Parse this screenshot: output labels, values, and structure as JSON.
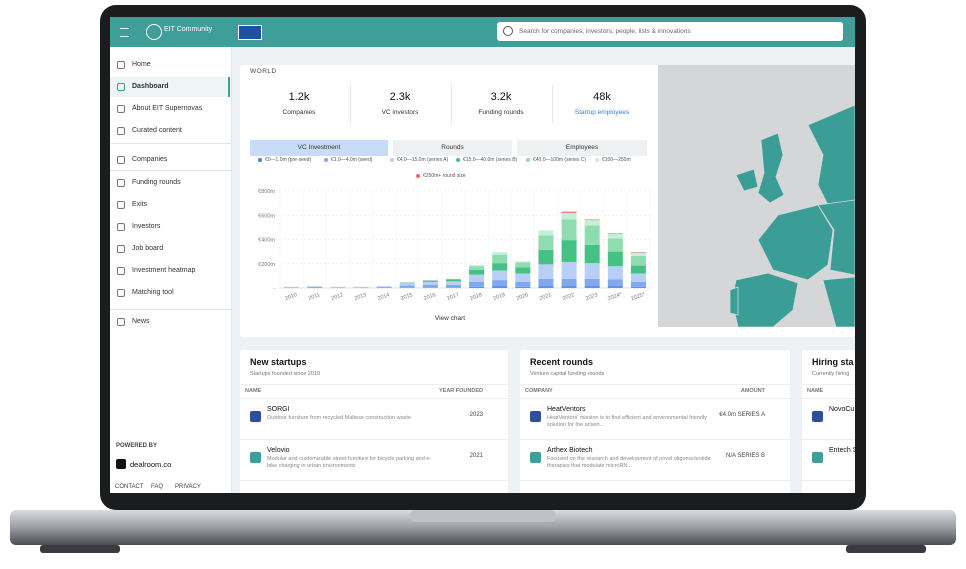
{
  "header": {
    "logo": "EIT Community",
    "search_placeholder": "Search for companies, investors, people, lists & innovations"
  },
  "sidebar": {
    "items": [
      "Home",
      "Dashboard",
      "About EIT Supernovas",
      "Curated content",
      "Companies",
      "Funding rounds",
      "Exits",
      "Investors",
      "Job board",
      "Investment heatmap",
      "Matching tool",
      "News"
    ],
    "powered_by": "POWERED BY",
    "brand": "dealroom.co",
    "footer_links": [
      "CONTACT",
      "FAQ",
      "PRIVACY"
    ]
  },
  "overview": {
    "region": "WORLD",
    "stats": [
      {
        "value": "1.2k",
        "label": "Companies"
      },
      {
        "value": "2.3k",
        "label": "VC investors"
      },
      {
        "value": "3.2k",
        "label": "Funding rounds"
      },
      {
        "value": "48k",
        "label": "Startup employees"
      }
    ],
    "tabs": [
      "VC Investment",
      "Rounds",
      "Employees"
    ],
    "view_chart": "View chart"
  },
  "chart_data": {
    "type": "stacked_bar",
    "categories": [
      "2010",
      "2011",
      "2012",
      "2013",
      "2014",
      "2015",
      "2016",
      "2017",
      "2018",
      "2019",
      "2020",
      "2021",
      "2022",
      "2023",
      "2024*",
      "2025*"
    ],
    "series": [
      {
        "name": "€0—1.0m (pre-seed)",
        "color": "#3f7fe0",
        "values": [
          2,
          3,
          2,
          2,
          3,
          5,
          5,
          5,
          10,
          15,
          10,
          15,
          15,
          15,
          15,
          10
        ]
      },
      {
        "name": "€1.0—4.0m (seed)",
        "color": "#7fa8ef",
        "values": [
          4,
          6,
          4,
          4,
          6,
          15,
          20,
          20,
          40,
          50,
          40,
          60,
          60,
          60,
          55,
          40
        ]
      },
      {
        "name": "€4.0—15.0m (series A)",
        "color": "#b7cef7",
        "values": [
          4,
          6,
          4,
          4,
          6,
          20,
          25,
          30,
          60,
          80,
          70,
          120,
          140,
          130,
          110,
          70
        ]
      },
      {
        "name": "€15.0—40.0m (series B)",
        "color": "#45c283",
        "values": [
          0,
          0,
          0,
          0,
          0,
          5,
          10,
          15,
          40,
          60,
          50,
          120,
          180,
          150,
          120,
          65
        ]
      },
      {
        "name": "€40.0—100m (series C)",
        "color": "#8fdcb0",
        "values": [
          0,
          0,
          0,
          0,
          0,
          0,
          5,
          5,
          30,
          70,
          40,
          120,
          170,
          160,
          110,
          80
        ]
      },
      {
        "name": "€100—250m",
        "color": "#c5efd8",
        "values": [
          0,
          0,
          0,
          0,
          0,
          0,
          0,
          0,
          10,
          20,
          10,
          40,
          55,
          45,
          35,
          25
        ]
      },
      {
        "name": "€250m+ round size",
        "color": "#e96b6b",
        "values": [
          0,
          0,
          0,
          0,
          0,
          0,
          0,
          0,
          0,
          0,
          0,
          0,
          10,
          5,
          5,
          5
        ]
      }
    ],
    "ylim": [
      0,
      800
    ],
    "yticks": [
      {
        "value": 0,
        "label": "-"
      },
      {
        "value": 200,
        "label": "€200m"
      },
      {
        "value": 400,
        "label": "€400m"
      },
      {
        "value": 600,
        "label": "€600m"
      },
      {
        "value": 800,
        "label": "€800m"
      }
    ],
    "grid": true
  },
  "panels": [
    {
      "title": "New startups",
      "subtitle": "Startups founded since 2019",
      "columns": [
        "NAME",
        "YEAR FOUNDED"
      ],
      "rows": [
        {
          "name": "SORGI",
          "description": "Outdoor furniture from recycled Maltese construction waste",
          "value": 2023
        },
        {
          "name": "Velovio",
          "description": "Modular and customizable street furniture for bicycle parking and e-bike charging in urban environments",
          "value": 2021
        }
      ]
    },
    {
      "title": "Recent rounds",
      "subtitle": "Venture capital funding rounds",
      "columns": [
        "COMPANY",
        "AMOUNT"
      ],
      "rows": [
        {
          "name": "HeatVentors",
          "description": "HeatVentors' mission is to find efficient and environmental friendly solution for the arisen...",
          "value": "€4.0m SERIES A"
        },
        {
          "name": "Arthex Biotech",
          "description": "Focused on the research and development of novel oligonucleotide therapies that modulate microRN...",
          "value": "N/A SERIES B"
        }
      ]
    },
    {
      "title": "Hiring sta",
      "subtitle": "Currently hiring",
      "columns": [
        "NAME"
      ],
      "rows": [
        {
          "name": "NovoCu"
        },
        {
          "name": "Entech S"
        }
      ]
    }
  ]
}
